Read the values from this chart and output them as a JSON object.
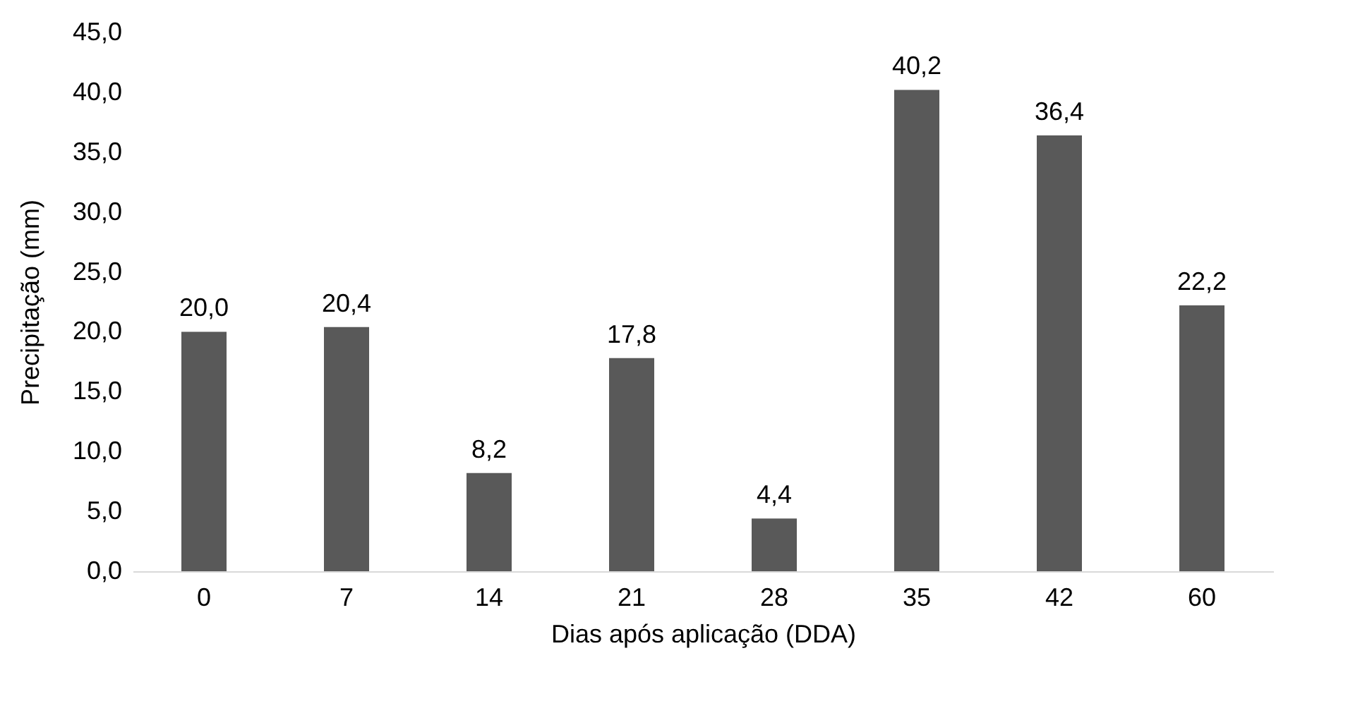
{
  "chart_data": {
    "type": "bar",
    "xlabel": "Dias após aplicação (DDA)",
    "ylabel": "Precipitação (mm)",
    "categories": [
      "0",
      "7",
      "14",
      "21",
      "28",
      "35",
      "42",
      "60"
    ],
    "values": [
      20.0,
      20.4,
      8.2,
      17.8,
      4.4,
      40.2,
      36.4,
      22.2
    ],
    "value_labels": [
      "20,0",
      "20,4",
      "8,2",
      "17,8",
      "4,4",
      "40,2",
      "36,4",
      "22,2"
    ],
    "color": "#595959",
    "ylim": [
      0,
      45
    ],
    "yticks": [
      {
        "value": 0,
        "label": "0,0"
      },
      {
        "value": 5,
        "label": "5,0"
      },
      {
        "value": 10,
        "label": "10,0"
      },
      {
        "value": 15,
        "label": "15,0"
      },
      {
        "value": 20,
        "label": "20,0"
      },
      {
        "value": 25,
        "label": "25,0"
      },
      {
        "value": 30,
        "label": "30,0"
      },
      {
        "value": 35,
        "label": "35,0"
      },
      {
        "value": 40,
        "label": "40,0"
      },
      {
        "value": 45,
        "label": "45,0"
      }
    ],
    "grid": false
  }
}
